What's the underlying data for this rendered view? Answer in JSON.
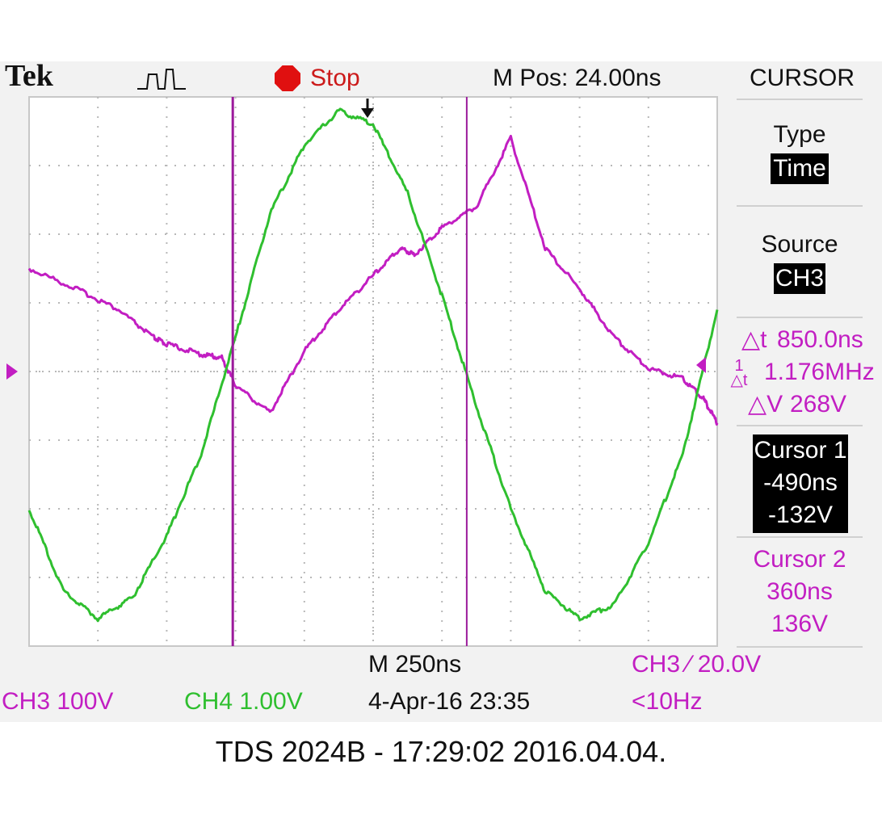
{
  "header": {
    "brand": "Tek",
    "run_state": "Stop",
    "m_pos": "M Pos: 24.00ns",
    "menu_title": "CURSOR"
  },
  "menu": {
    "type_label": "Type",
    "type_value": "Time",
    "source_label": "Source",
    "source_value": "CH3",
    "delta_t": "850.0ns",
    "inv_delta_t": "1.176MHz",
    "delta_v": "268V",
    "cursor1": {
      "label": "Cursor 1",
      "time": "-490ns",
      "volt": "-132V"
    },
    "cursor2": {
      "label": "Cursor 2",
      "time": "360ns",
      "volt": "136V"
    }
  },
  "bottom": {
    "timebase": "M 250ns",
    "ch3_scale": "CH3  100V",
    "ch4_scale": "CH4  1.00V",
    "date": "4-Apr-16 23:35",
    "trigger": "CH3 ∕ 20.0V",
    "trigger_freq": "<10Hz"
  },
  "footer": "TDS 2024B - 17:29:02   2016.04.04.",
  "chart_data": {
    "type": "line",
    "xlabel": "",
    "ylabel": "",
    "grid": true,
    "x_div": 10,
    "y_div": 8,
    "series": [
      {
        "color": "#c21ec2",
        "channel": "CH3",
        "x": [
          0,
          0.7,
          1.3,
          1.8,
          2.0,
          2.5,
          2.8,
          3.0,
          3.5,
          4.0,
          4.5,
          5.0,
          5.4,
          5.6,
          6.0,
          6.5,
          7.0,
          7.5,
          8.0,
          8.5,
          9.0,
          9.5,
          9.8,
          10
        ],
        "y": [
          1.5,
          1.2,
          0.9,
          0.5,
          0.4,
          0.25,
          0.2,
          -0.2,
          -0.6,
          0.3,
          0.9,
          1.4,
          1.8,
          1.7,
          2.1,
          2.4,
          3.4,
          1.8,
          1.2,
          0.5,
          0.05,
          -0.1,
          -0.4,
          -0.75
        ]
      },
      {
        "color": "#2fbf2f",
        "channel": "CH4",
        "x": [
          0,
          0.5,
          1.0,
          1.5,
          2.0,
          2.5,
          3.0,
          3.5,
          4.0,
          4.5,
          5.0,
          5.5,
          6.0,
          6.5,
          7.0,
          7.5,
          8.0,
          8.5,
          9.0,
          9.5,
          10
        ],
        "y": [
          -2.0,
          -3.2,
          -3.6,
          -3.3,
          -2.4,
          -1.2,
          0.5,
          2.3,
          3.3,
          3.8,
          3.6,
          2.6,
          1.1,
          -0.5,
          -2.0,
          -3.2,
          -3.6,
          -3.4,
          -2.5,
          -1.2,
          0.9
        ]
      }
    ],
    "cursors_x_div": [
      2.96,
      6.36
    ]
  }
}
